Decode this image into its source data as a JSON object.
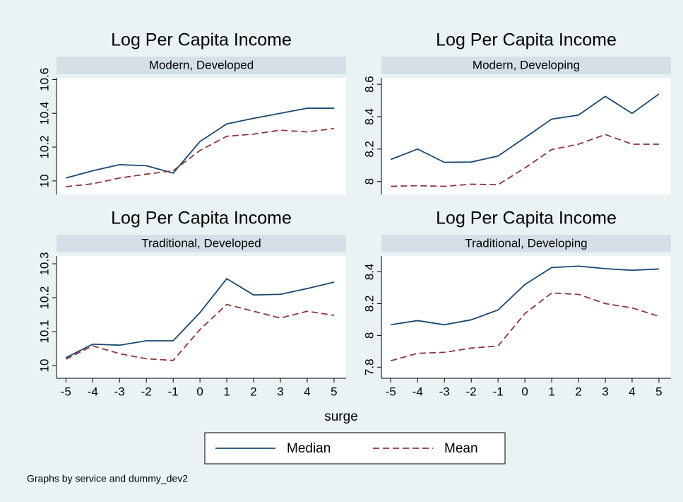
{
  "chart_data": [
    {
      "type": "line",
      "title": "Log Per Capita Income",
      "subtitle": "Modern, Developed",
      "x": [
        -5,
        -4,
        -3,
        -2,
        -1,
        0,
        1,
        2,
        3,
        4,
        5
      ],
      "xlim": [
        -5.35,
        5.45
      ],
      "ylim": [
        9.92,
        10.61
      ],
      "yticks": [
        10,
        10.2,
        10.4,
        10.6
      ],
      "grid": false,
      "series": [
        {
          "name": "Median",
          "color": "#1a476f",
          "dash": false,
          "values": [
            10.017,
            10.06,
            10.096,
            10.09,
            10.046,
            10.233,
            10.337,
            10.37,
            10.4,
            10.43,
            10.43
          ]
        },
        {
          "name": "Mean",
          "color": "#90353b",
          "dash": true,
          "values": [
            9.966,
            9.983,
            10.017,
            10.04,
            10.06,
            10.18,
            10.264,
            10.277,
            10.3,
            10.29,
            10.31
          ]
        }
      ]
    },
    {
      "type": "line",
      "title": "Log Per Capita Income",
      "subtitle": "Modern, Developing",
      "x": [
        -5,
        -4,
        -3,
        -2,
        -1,
        0,
        1,
        2,
        3,
        4,
        5
      ],
      "xlim": [
        -5.35,
        5.45
      ],
      "ylim": [
        7.92,
        8.64
      ],
      "yticks": [
        8,
        8.2,
        8.4,
        8.6
      ],
      "grid": false,
      "series": [
        {
          "name": "Median",
          "color": "#1a476f",
          "dash": false,
          "values": [
            8.136,
            8.2,
            8.118,
            8.12,
            8.157,
            8.27,
            8.385,
            8.41,
            8.525,
            8.42,
            8.54
          ]
        },
        {
          "name": "Mean",
          "color": "#90353b",
          "dash": true,
          "values": [
            7.97,
            7.974,
            7.97,
            7.983,
            7.98,
            8.083,
            8.197,
            8.23,
            8.29,
            8.23,
            8.23
          ]
        }
      ]
    },
    {
      "type": "line",
      "title": "Log Per Capita Income",
      "subtitle": "Traditional, Developed",
      "x": [
        -5,
        -4,
        -3,
        -2,
        -1,
        0,
        1,
        2,
        3,
        4,
        5
      ],
      "xlim": [
        -5.35,
        5.45
      ],
      "xticks": [
        -5,
        -4,
        -3,
        -2,
        -1,
        0,
        1,
        2,
        3,
        4,
        5
      ],
      "ylim": [
        9.9625,
        10.323
      ],
      "yticks": [
        10,
        10.1,
        10.2,
        10.3
      ],
      "grid": false,
      "series": [
        {
          "name": "Median",
          "color": "#1a476f",
          "dash": false,
          "values": [
            10.023,
            10.063,
            10.06,
            10.073,
            10.073,
            10.156,
            10.256,
            10.208,
            10.21,
            10.227,
            10.246
          ]
        },
        {
          "name": "Mean",
          "color": "#90353b",
          "dash": true,
          "values": [
            10.019,
            10.058,
            10.035,
            10.02,
            10.015,
            10.106,
            10.18,
            10.16,
            10.14,
            10.16,
            10.148
          ]
        }
      ]
    },
    {
      "type": "line",
      "title": "Log Per Capita Income",
      "subtitle": "Traditional, Developing",
      "x": [
        -5,
        -4,
        -3,
        -2,
        -1,
        0,
        1,
        2,
        3,
        4,
        5
      ],
      "xlim": [
        -5.35,
        5.45
      ],
      "xticks": [
        -5,
        -4,
        -3,
        -2,
        -1,
        0,
        1,
        2,
        3,
        4,
        5
      ],
      "ylim": [
        7.73,
        8.5
      ],
      "yticks": [
        7.8,
        8,
        8.2,
        8.4
      ],
      "grid": false,
      "series": [
        {
          "name": "Median",
          "color": "#1a476f",
          "dash": false,
          "values": [
            8.067,
            8.093,
            8.067,
            8.098,
            8.16,
            8.32,
            8.427,
            8.436,
            8.42,
            8.41,
            8.418
          ]
        },
        {
          "name": "Mean",
          "color": "#90353b",
          "dash": true,
          "values": [
            7.84,
            7.887,
            7.893,
            7.92,
            7.933,
            8.137,
            8.267,
            8.258,
            8.2,
            8.173,
            8.12
          ]
        }
      ]
    }
  ],
  "figure": {
    "xlabel": "surge",
    "note": "Graphs by service and dummy_dev2"
  }
}
